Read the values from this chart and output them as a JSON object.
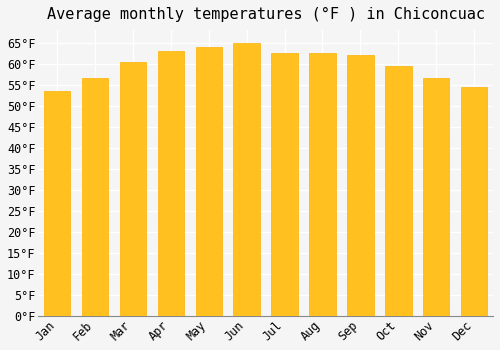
{
  "title": "Average monthly temperatures (°F ) in Chiconcuac",
  "months": [
    "Jan",
    "Feb",
    "Mar",
    "Apr",
    "May",
    "Jun",
    "Jul",
    "Aug",
    "Sep",
    "Oct",
    "Nov",
    "Dec"
  ],
  "values": [
    53.5,
    56.5,
    60.5,
    63.0,
    64.0,
    65.0,
    62.5,
    62.5,
    62.0,
    59.5,
    56.5,
    54.5
  ],
  "bar_color": "#FFC020",
  "bar_edge_color": "#FFB000",
  "background_color": "#F5F5F5",
  "grid_color": "#FFFFFF",
  "ylim": [
    0,
    68
  ],
  "yticks": [
    0,
    5,
    10,
    15,
    20,
    25,
    30,
    35,
    40,
    45,
    50,
    55,
    60,
    65
  ],
  "title_fontsize": 11,
  "tick_fontsize": 8.5,
  "font_family": "monospace"
}
